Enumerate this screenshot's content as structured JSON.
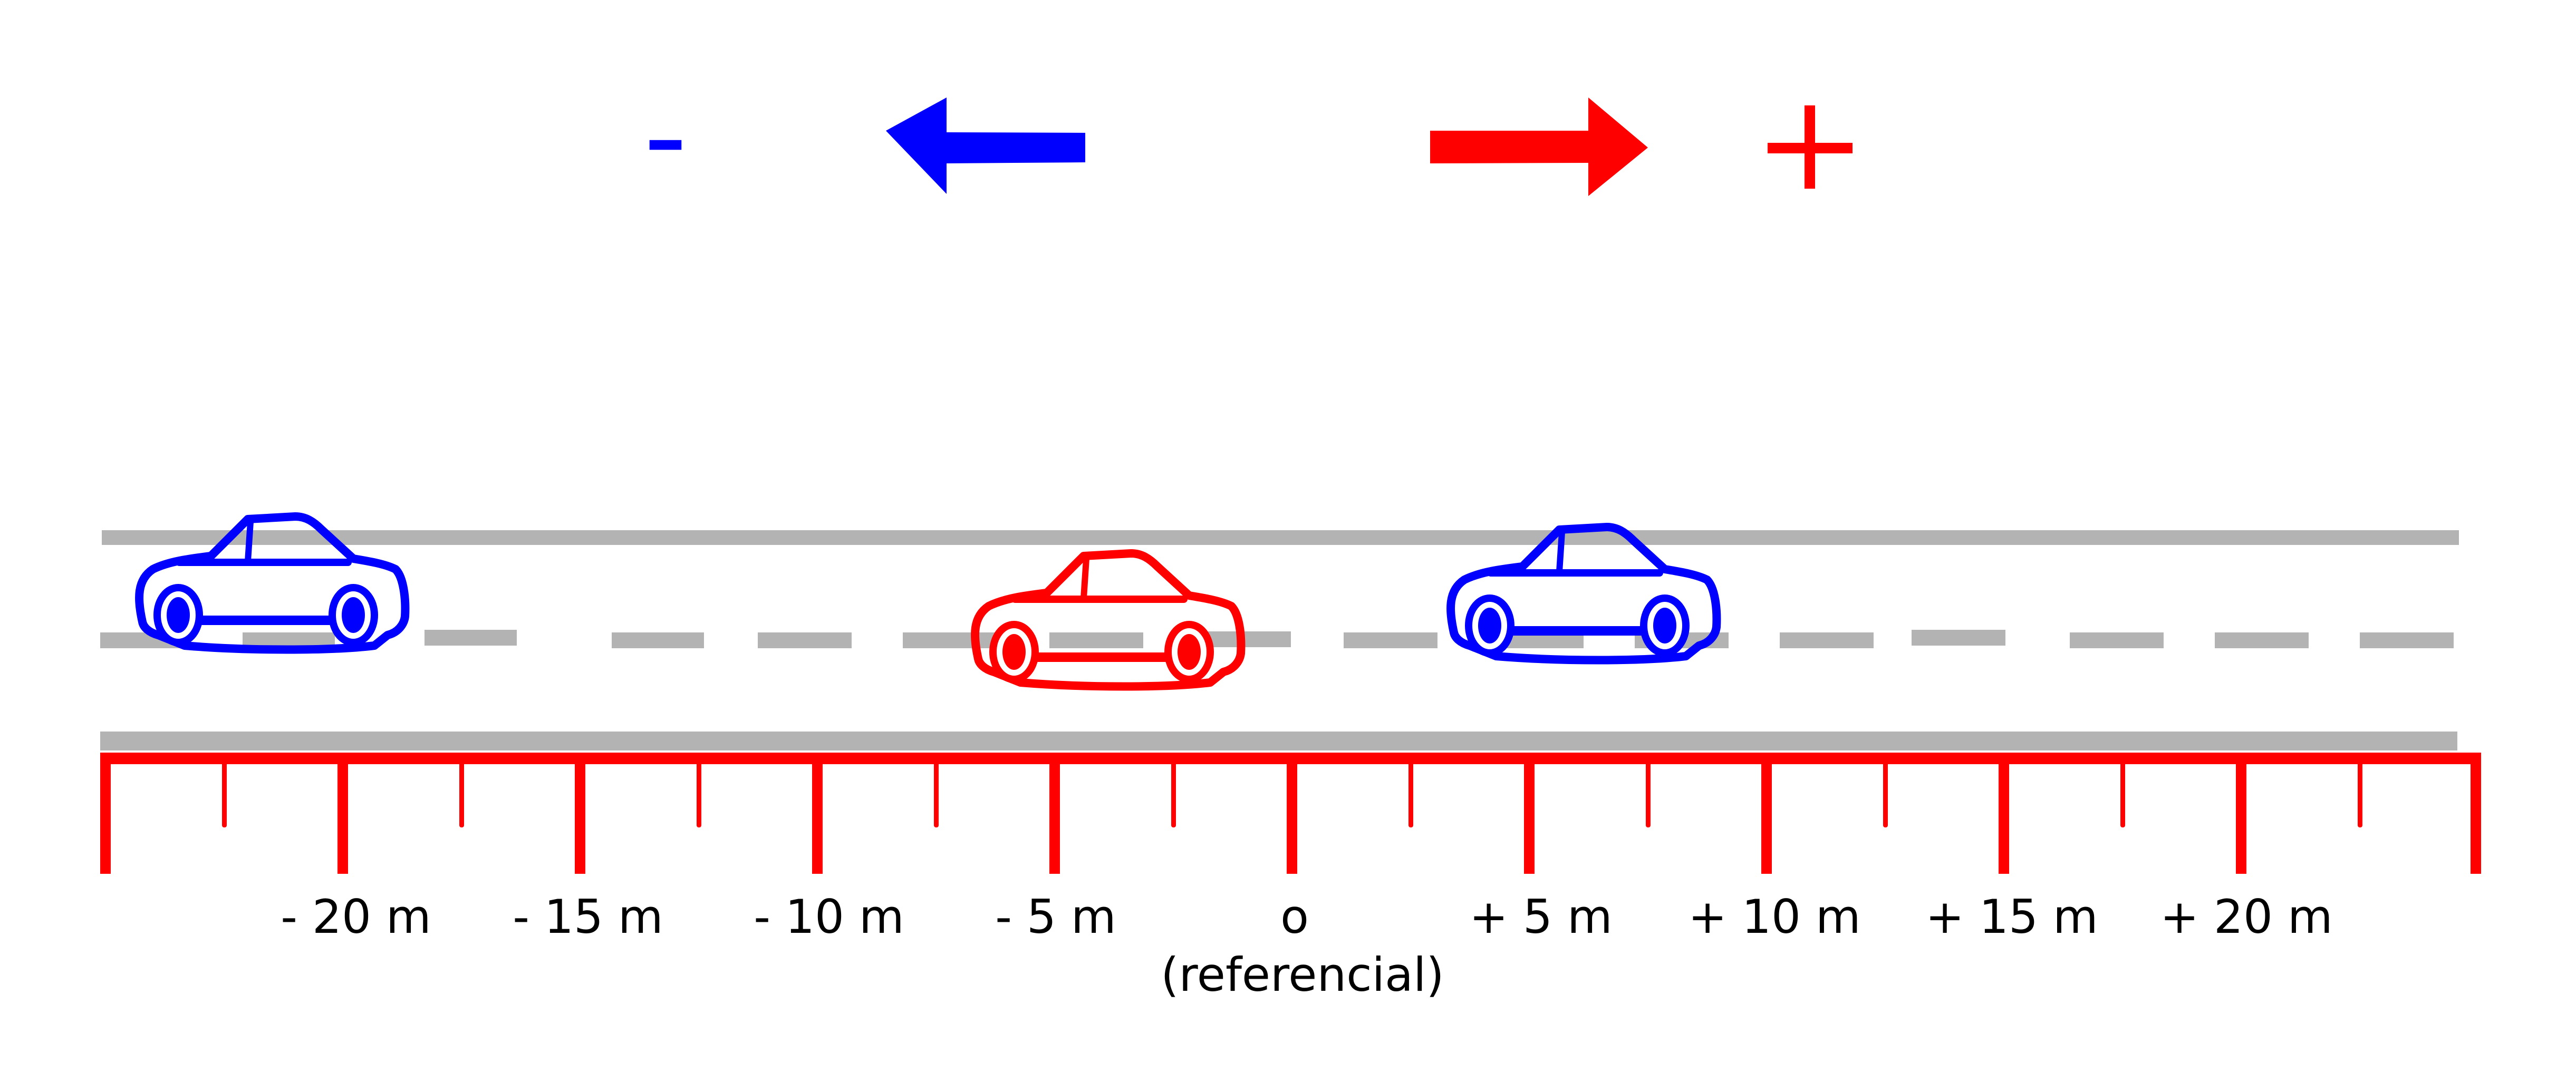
{
  "direction_legend": {
    "negative_symbol": "-",
    "positive_symbol": "+",
    "negative_color": "#0000ff",
    "positive_color": "#ff0000",
    "negative_arrow_icon": "arrow-left-icon",
    "positive_arrow_icon": "arrow-right-icon"
  },
  "road": {
    "line_color": "#b3b3b3"
  },
  "scale": {
    "color": "#ff0000",
    "labels": [
      "- 20 m",
      "- 15 m",
      "- 10 m",
      "- 5 m",
      "o",
      "+ 5 m",
      "+ 10 m",
      "+ 15 m",
      "+ 20 m"
    ],
    "reference_note": "(referencial)"
  },
  "cars": [
    {
      "name": "car-left",
      "color": "#0000ff",
      "icon": "car-icon"
    },
    {
      "name": "car-reference",
      "color": "#ff0000",
      "icon": "car-icon"
    },
    {
      "name": "car-right",
      "color": "#0000ff",
      "icon": "car-icon"
    }
  ]
}
